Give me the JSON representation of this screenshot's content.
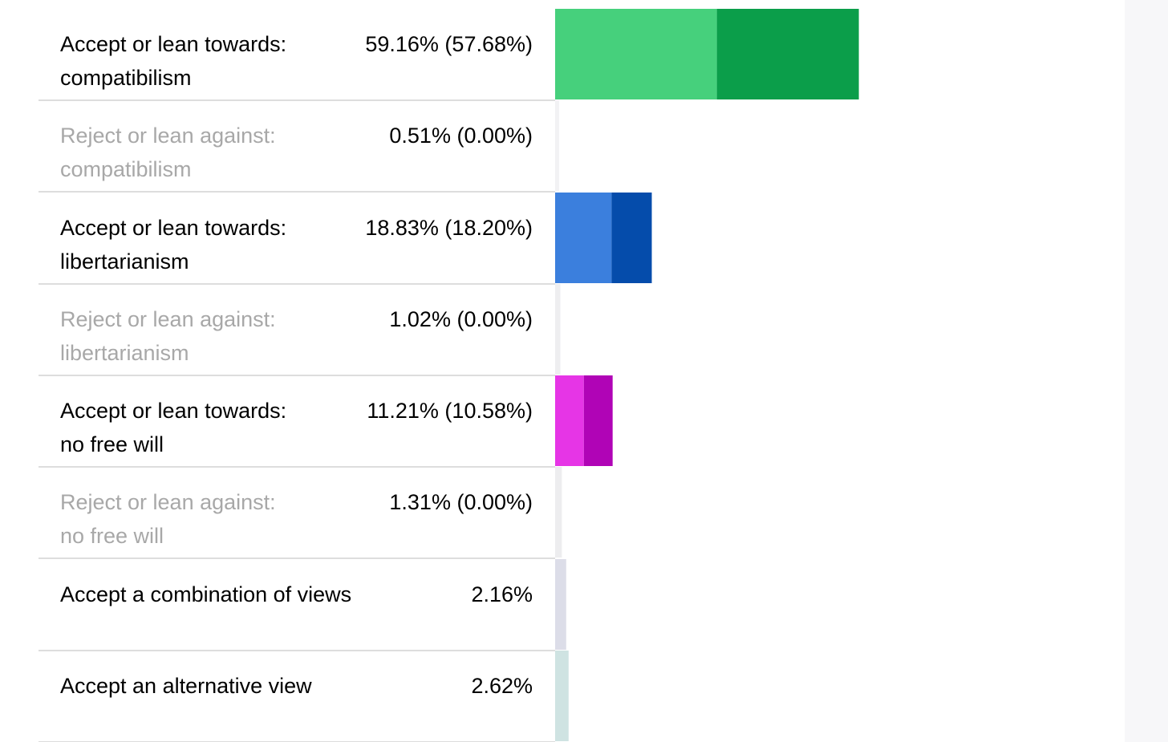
{
  "chart_data": {
    "type": "bar",
    "orientation": "horizontal",
    "stacked": true,
    "legend": "none",
    "grid": false,
    "xlim": [
      0,
      100
    ],
    "categories": [
      "Accept or lean towards:\ncompatibilism",
      "Reject or lean against:\ncompatibilism",
      "Accept or lean towards:\nlibertarianism",
      "Reject or lean against:\nlibertarianism",
      "Accept or lean towards:\nno free will",
      "Reject or lean against:\nno free will",
      "Accept a combination of views",
      "Accept an alternative view"
    ],
    "value_labels": [
      "59.16% (57.68%)",
      "0.51% (0.00%)",
      "18.83% (18.20%)",
      "1.02% (0.00%)",
      "11.21% (10.58%)",
      "1.31% (0.00%)",
      "2.16%",
      "2.62%"
    ],
    "totals": [
      59.16,
      0.51,
      18.83,
      1.02,
      11.21,
      1.31,
      2.16,
      2.62
    ],
    "lean": [
      31.5,
      0.51,
      11.0,
      1.02,
      5.6,
      1.31,
      2.16,
      2.62
    ],
    "accept": [
      27.66,
      0,
      7.83,
      0,
      5.61,
      0,
      0,
      0
    ],
    "muted": [
      false,
      true,
      false,
      true,
      false,
      true,
      false,
      false
    ],
    "colors": [
      {
        "light": "#46d07c",
        "dark": "#0b9e4a"
      },
      {
        "light": "#f2f2f4",
        "dark": "#f2f2f4"
      },
      {
        "light": "#3b7fdd",
        "dark": "#054cab"
      },
      {
        "light": "#eeeef0",
        "dark": "#eeeef0"
      },
      {
        "light": "#e635e6",
        "dark": "#b004b6"
      },
      {
        "light": "#ededef",
        "dark": "#ededef"
      },
      {
        "light": "#dcdde8",
        "dark": "#dcdde8"
      },
      {
        "light": "#cfe3e2",
        "dark": "#cfe3e2"
      }
    ]
  }
}
